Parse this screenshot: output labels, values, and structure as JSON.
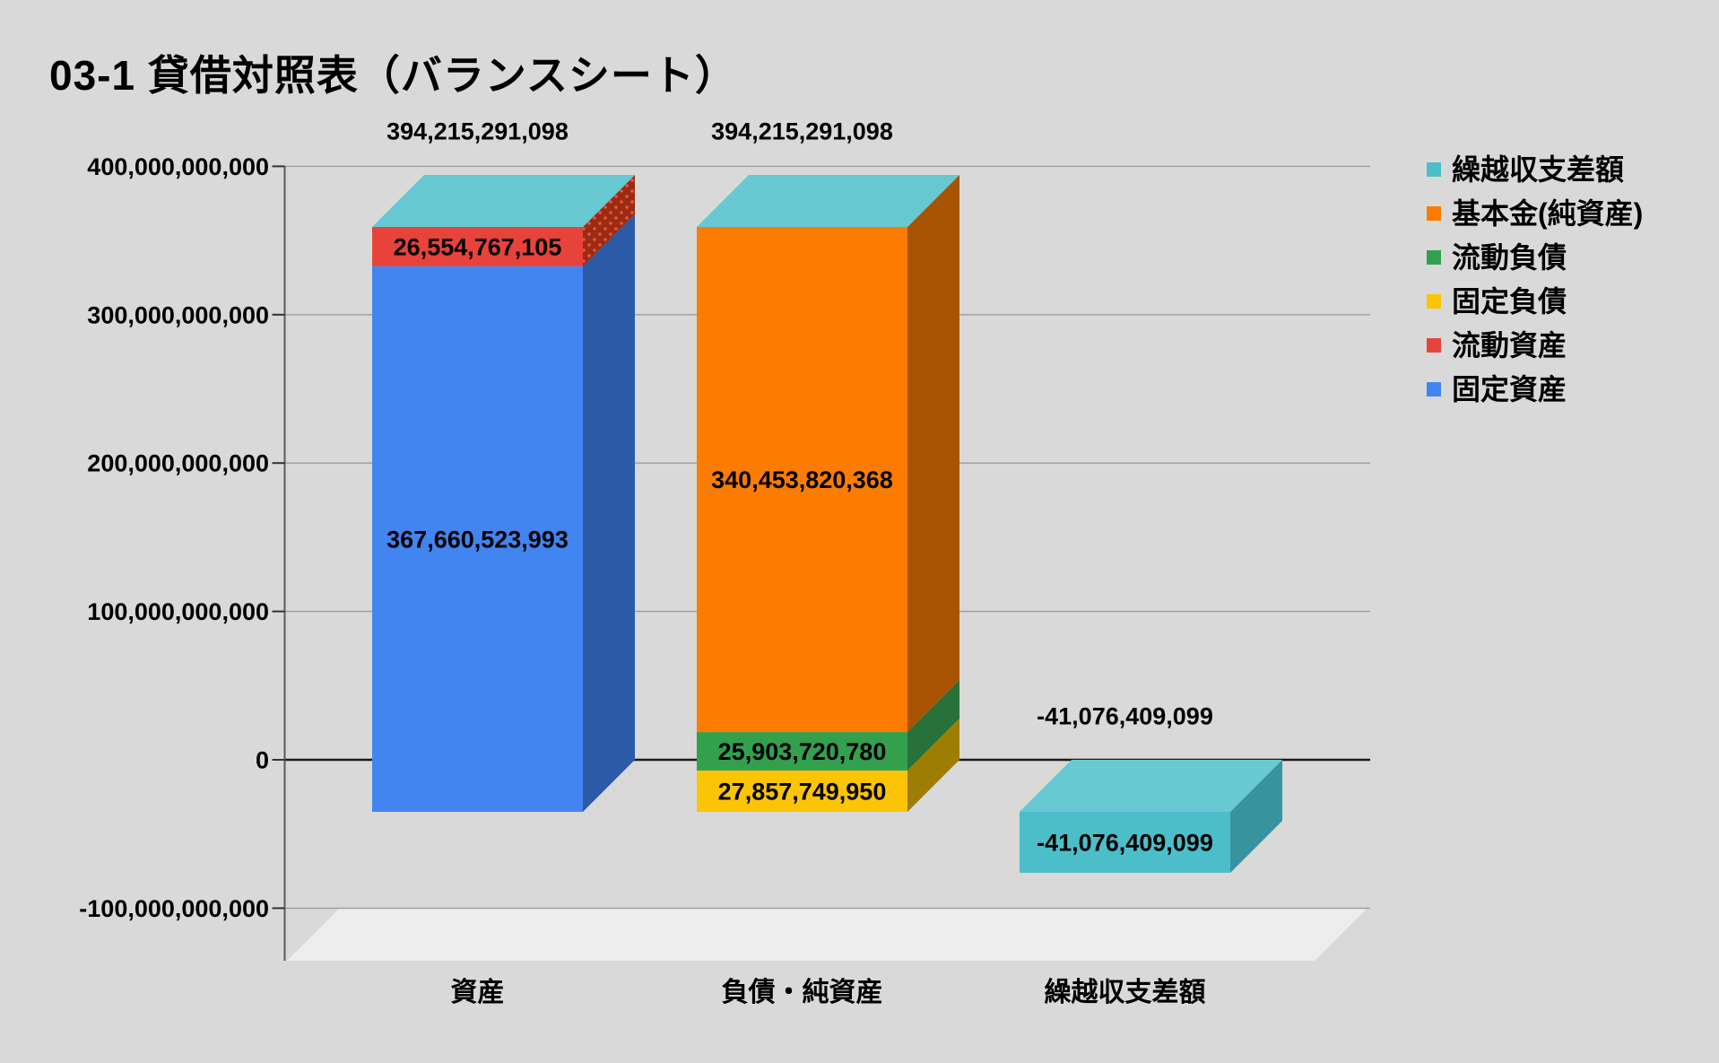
{
  "title": "03-1 貸借対照表（バランスシート）",
  "chart_data": {
    "type": "bar",
    "variant": "3d-stacked-column",
    "title": "03-1 貸借対照表（バランスシート）",
    "categories": [
      "資産",
      "負債・純資産",
      "繰越収支差額"
    ],
    "series": [
      {
        "id": "fixed-assets",
        "name": "固定資産",
        "color": "#4285f0",
        "side_color": "#2b5ba7",
        "values": [
          367660523993,
          0,
          0
        ]
      },
      {
        "id": "current-assets",
        "name": "流動資産",
        "color": "#e8433a",
        "side_color": "#9c2b13",
        "side_pattern": "dots",
        "side_dot_color": "#e8563d",
        "values": [
          26554767105,
          0,
          0
        ]
      },
      {
        "id": "fixed-liabilities",
        "name": "固定負債",
        "color": "#fcc406",
        "side_color": "#9e7d04",
        "values": [
          0,
          27857749950,
          0
        ]
      },
      {
        "id": "current-liabilities",
        "name": "流動負債",
        "color": "#33a04e",
        "side_color": "#27713a",
        "values": [
          0,
          25903720780,
          0
        ]
      },
      {
        "id": "capital-net-assets",
        "name": "基本金(純資産)",
        "color": "#fb7c00",
        "side_color": "#a85302",
        "values": [
          0,
          340453820368,
          0
        ]
      },
      {
        "id": "carryover-balance",
        "name": "繰越収支差額",
        "color": "#4cbeca",
        "side_color": "#37939e",
        "top_color": "#67c9d2",
        "values": [
          0,
          0,
          -41076409099
        ]
      }
    ],
    "stack_cap_color": "#67c9d2",
    "total_labels": [
      394215291098,
      394215291098,
      -41076409099
    ],
    "segment_labels_shown": true,
    "y_axis": {
      "min": -100000000000,
      "max": 400000000000,
      "ticks": [
        {
          "value": 400000000000,
          "label": "400,000,000,000"
        },
        {
          "value": 300000000000,
          "label": "300,000,000,000"
        },
        {
          "value": 200000000000,
          "label": "200,000,000,000"
        },
        {
          "value": 100000000000,
          "label": "100,000,000,000"
        },
        {
          "value": 0,
          "label": "0"
        },
        {
          "value": -100000000000,
          "label": "-100,000,000,000"
        }
      ]
    },
    "gridlines": true,
    "legend_position": "right"
  },
  "legend": {
    "items": [
      {
        "label": "繰越収支差額",
        "color": "#4cbeca"
      },
      {
        "label": "基本金(純資産)",
        "color": "#fb7c00"
      },
      {
        "label": "流動負債",
        "color": "#33a04e"
      },
      {
        "label": "固定負債",
        "color": "#fcc406"
      },
      {
        "label": "流動資産",
        "color": "#e8433a"
      },
      {
        "label": "固定資産",
        "color": "#4285f0"
      }
    ]
  },
  "colors": {
    "background": "#d9d9d9",
    "gridline": "#9b9b9b",
    "zero_line": "#1a1a1a",
    "axis_line": "#595959",
    "tick_mark": "#333333",
    "floor": "#ededee",
    "text": "#000000"
  }
}
